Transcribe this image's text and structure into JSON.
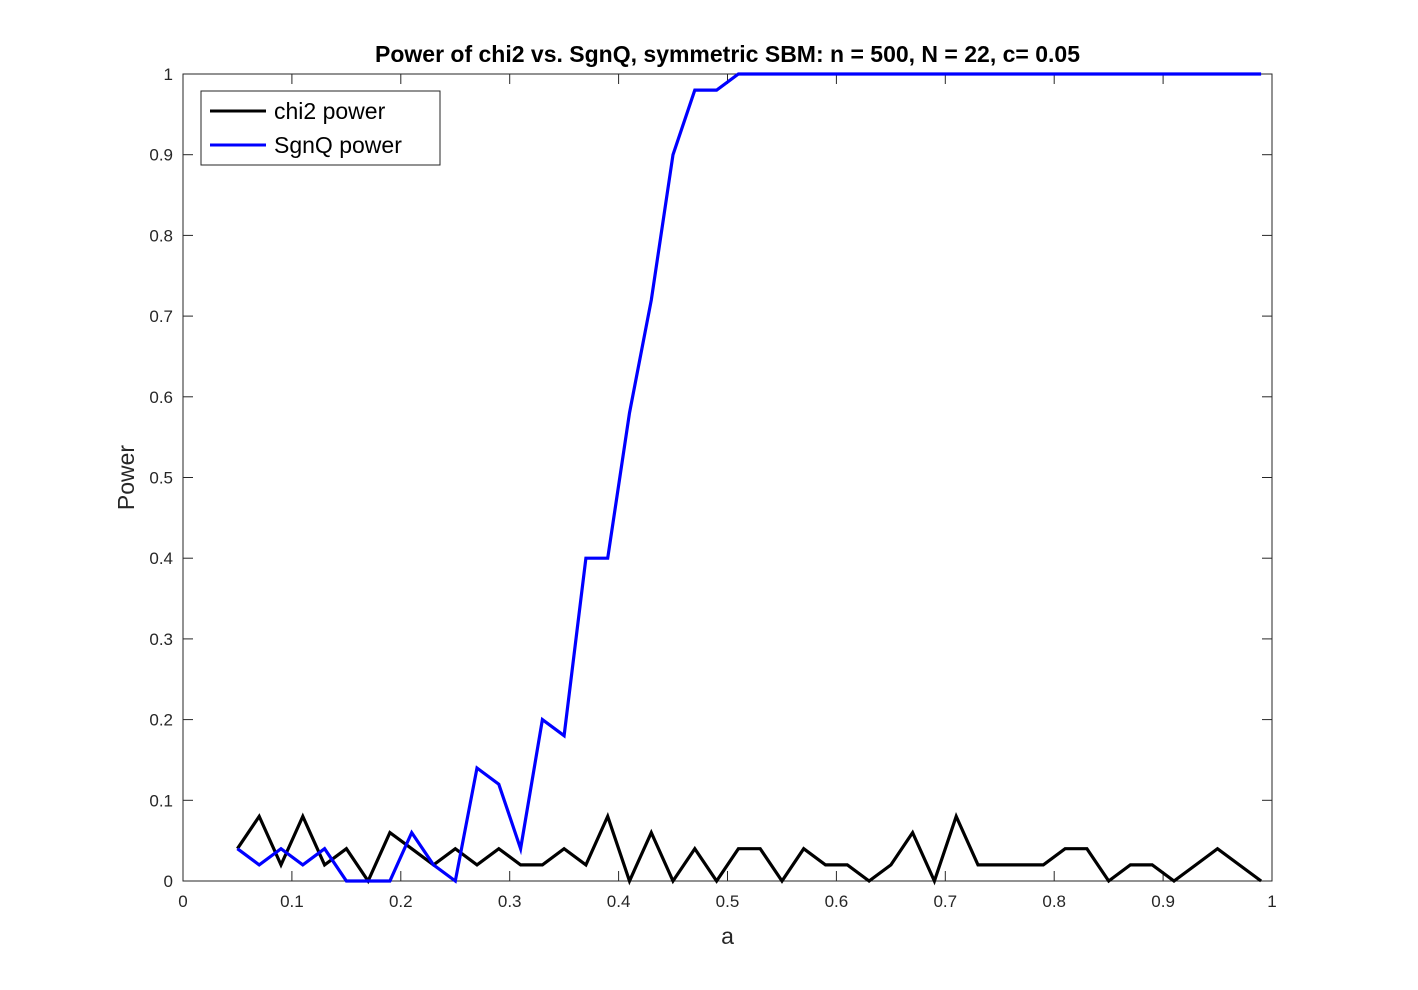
{
  "chart_data": {
    "type": "line",
    "title": "Power of chi2 vs. SgnQ, symmetric SBM: n = 500, N = 22, c= 0.05",
    "xlabel": "a",
    "ylabel": "Power",
    "xlim": [
      0,
      1
    ],
    "ylim": [
      0,
      1
    ],
    "xticks": [
      0,
      0.1,
      0.2,
      0.3,
      0.4,
      0.5,
      0.6,
      0.7,
      0.8,
      0.9,
      1
    ],
    "xtick_labels": [
      "0",
      "0.1",
      "0.2",
      "0.3",
      "0.4",
      "0.5",
      "0.6",
      "0.7",
      "0.8",
      "0.9",
      "1"
    ],
    "yticks": [
      0,
      0.1,
      0.2,
      0.3,
      0.4,
      0.5,
      0.6,
      0.7,
      0.8,
      0.9,
      1
    ],
    "ytick_labels": [
      "0",
      "0.1",
      "0.2",
      "0.3",
      "0.4",
      "0.5",
      "0.6",
      "0.7",
      "0.8",
      "0.9",
      "1"
    ],
    "grid": false,
    "legend_position": "top-left",
    "x": [
      0.05,
      0.07,
      0.09,
      0.11,
      0.13,
      0.15,
      0.17,
      0.19,
      0.21,
      0.23,
      0.25,
      0.27,
      0.29,
      0.31,
      0.33,
      0.35,
      0.37,
      0.39,
      0.41,
      0.43,
      0.45,
      0.47,
      0.49,
      0.51,
      0.53,
      0.55,
      0.57,
      0.59,
      0.61,
      0.63,
      0.65,
      0.67,
      0.69,
      0.71,
      0.73,
      0.75,
      0.77,
      0.79,
      0.81,
      0.83,
      0.85,
      0.87,
      0.89,
      0.91,
      0.93,
      0.95,
      0.97,
      0.99
    ],
    "series": [
      {
        "name": "chi2 power",
        "color": "#000000",
        "values": [
          0.04,
          0.08,
          0.02,
          0.08,
          0.02,
          0.04,
          0.0,
          0.06,
          0.04,
          0.02,
          0.04,
          0.02,
          0.04,
          0.02,
          0.02,
          0.04,
          0.02,
          0.08,
          0.0,
          0.06,
          0.0,
          0.04,
          0.0,
          0.04,
          0.04,
          0.0,
          0.04,
          0.02,
          0.02,
          0.0,
          0.02,
          0.06,
          0.0,
          0.08,
          0.02,
          0.02,
          0.02,
          0.02,
          0.04,
          0.04,
          0.0,
          0.02,
          0.02,
          0.0,
          0.02,
          0.04,
          0.02,
          0.0
        ]
      },
      {
        "name": "SgnQ power",
        "color": "#0000ff",
        "values": [
          0.04,
          0.02,
          0.04,
          0.02,
          0.04,
          0.0,
          0.0,
          0.0,
          0.06,
          0.02,
          0.0,
          0.14,
          0.12,
          0.04,
          0.2,
          0.18,
          0.4,
          0.4,
          0.58,
          0.72,
          0.9,
          0.98,
          0.98,
          1.0,
          1.0,
          1.0,
          1.0,
          1.0,
          1.0,
          1.0,
          1.0,
          1.0,
          1.0,
          1.0,
          1.0,
          1.0,
          1.0,
          1.0,
          1.0,
          1.0,
          1.0,
          1.0,
          1.0,
          1.0,
          1.0,
          1.0,
          1.0,
          1.0
        ]
      }
    ]
  }
}
